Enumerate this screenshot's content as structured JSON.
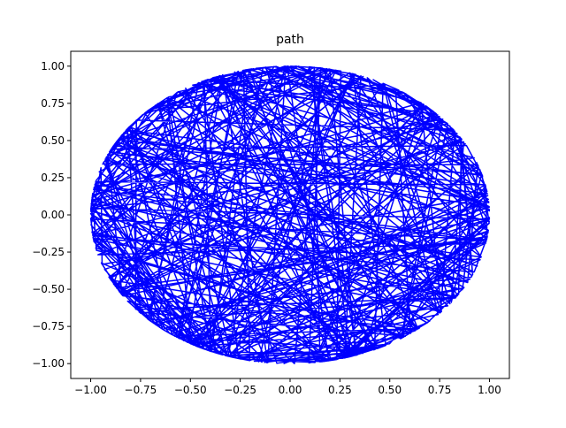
{
  "chart_data": {
    "type": "line",
    "title": "path",
    "xlabel": "",
    "ylabel": "",
    "xlim": [
      -1.1,
      1.1
    ],
    "ylim": [
      -1.1,
      1.1
    ],
    "x_ticks": [
      -1.0,
      -0.75,
      -0.5,
      -0.25,
      0.0,
      0.25,
      0.5,
      0.75,
      1.0
    ],
    "x_tick_labels": [
      "−1.00",
      "−0.75",
      "−0.50",
      "−0.25",
      "0.00",
      "0.25",
      "0.50",
      "0.75",
      "1.00"
    ],
    "y_ticks": [
      -1.0,
      -0.75,
      -0.5,
      -0.25,
      0.0,
      0.25,
      0.5,
      0.75,
      1.0
    ],
    "y_tick_labels": [
      "−1.00",
      "−0.75",
      "−0.50",
      "−0.25",
      "0.00",
      "0.25",
      "0.50",
      "0.75",
      "1.00"
    ],
    "grid": false,
    "legend": "none",
    "series": [
      {
        "color": "#0000ff",
        "path_points": 400,
        "description_shape": "unit-circle"
      }
    ]
  }
}
